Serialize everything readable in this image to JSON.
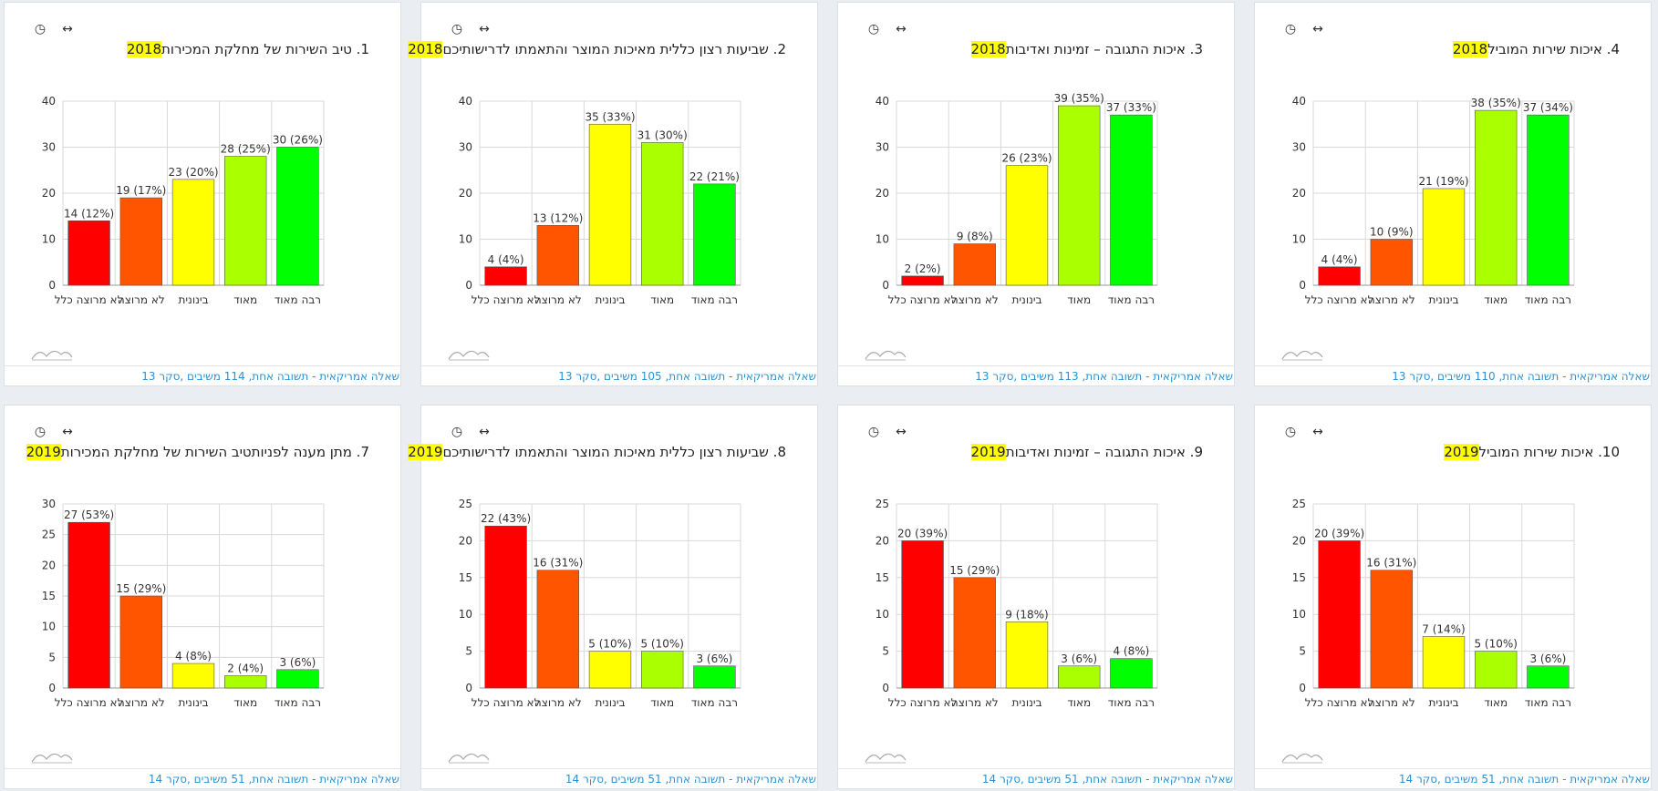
{
  "common": {
    "clock_icon": "clock-icon",
    "expand_icon": "horizontal-arrows-icon",
    "wave_icon": "wave-icon",
    "clock_glyph": "◷",
    "expand_glyph": "↔"
  },
  "bar_colors": [
    "#ff0000",
    "#ff5500",
    "#ffff00",
    "#aaff00",
    "#00ff00"
  ],
  "chart_data": [
    {
      "type": "bar",
      "title_text": "1. טיב השירות של מחלקת המכירות",
      "title_year": "2018",
      "categories": [
        "לא מרוצה כלל",
        "לא מרוצה",
        "בינונית",
        "מאוד",
        "רבה מאוד"
      ],
      "values": [
        14,
        19,
        23,
        28,
        30
      ],
      "labels": [
        "14 (12%)",
        "19 (17%)",
        "23 (20%)",
        "28 (25%)",
        "30 (26%)"
      ],
      "yticks": [
        0,
        10,
        20,
        30,
        40
      ],
      "ylim": [
        0,
        40
      ],
      "footer": "שאלה אמריקאית - תשובה אחת, 114 משיבים ,סקר 13"
    },
    {
      "type": "bar",
      "title_text": "2. שביעות רצון כללית מאיכות המוצר והתאמתו לדרישותיכם",
      "title_year": "2018",
      "categories": [
        "לא מרוצה כלל",
        "לא מרוצה",
        "בינונית",
        "מאוד",
        "רבה מאוד"
      ],
      "values": [
        4,
        13,
        35,
        31,
        22
      ],
      "labels": [
        "4 (4%)",
        "13 (12%)",
        "35 (33%)",
        "31 (30%)",
        "22 (21%)"
      ],
      "yticks": [
        0,
        10,
        20,
        30,
        40
      ],
      "ylim": [
        0,
        40
      ],
      "footer": "שאלה אמריקאית - תשובה אחת, 105 משיבים ,סקר 13"
    },
    {
      "type": "bar",
      "title_text": "3. איכות התגובה – זמינות ואדיבות",
      "title_year": "2018",
      "categories": [
        "לא מרוצה כלל",
        "לא מרוצה",
        "בינונית",
        "מאוד",
        "רבה מאוד"
      ],
      "values": [
        2,
        9,
        26,
        39,
        37
      ],
      "labels": [
        "2 (2%)",
        "9 (8%)",
        "26 (23%)",
        "39 (35%)",
        "37 (33%)"
      ],
      "yticks": [
        0,
        10,
        20,
        30,
        40
      ],
      "ylim": [
        0,
        40
      ],
      "footer": "שאלה אמריקאית - תשובה אחת, 113 משיבים ,סקר 13"
    },
    {
      "type": "bar",
      "title_text": "4. איכות שירות המוביל",
      "title_year": "2018",
      "categories": [
        "לא מרוצה כלל",
        "לא מרוצה",
        "בינונית",
        "מאוד",
        "רבה מאוד"
      ],
      "values": [
        4,
        10,
        21,
        38,
        37
      ],
      "labels": [
        "4 (4%)",
        "10 (9%)",
        "21 (19%)",
        "38 (35%)",
        "37 (34%)"
      ],
      "yticks": [
        0,
        10,
        20,
        30,
        40
      ],
      "ylim": [
        0,
        40
      ],
      "footer": "שאלה אמריקאית - תשובה אחת, 110 משיבים ,סקר 13"
    },
    {
      "type": "bar",
      "title_text": "7. מתן מענה לפניותטיב השירות של מחלקת המכירות",
      "title_year": "2019",
      "categories": [
        "לא מרוצה כלל",
        "לא מרוצה",
        "בינונית",
        "מאוד",
        "רבה מאוד"
      ],
      "values": [
        27,
        15,
        4,
        2,
        3
      ],
      "labels": [
        "27 (53%)",
        "15 (29%)",
        "4 (8%)",
        "2 (4%)",
        "3 (6%)"
      ],
      "yticks": [
        0,
        5,
        10,
        15,
        20,
        25,
        30
      ],
      "ylim": [
        0,
        30
      ],
      "footer": "שאלה אמריקאית - תשובה אחת, 51 משיבים ,סקר 14"
    },
    {
      "type": "bar",
      "title_text": "8. שביעות רצון כללית מאיכות המוצר והתאמתו לדרישותיכם",
      "title_year": "2019",
      "categories": [
        "לא מרוצה כלל",
        "לא מרוצה",
        "בינונית",
        "מאוד",
        "רבה מאוד"
      ],
      "values": [
        22,
        16,
        5,
        5,
        3
      ],
      "labels": [
        "22 (43%)",
        "16 (31%)",
        "5 (10%)",
        "5 (10%)",
        "3 (6%)"
      ],
      "yticks": [
        0,
        5,
        10,
        15,
        20,
        25
      ],
      "ylim": [
        0,
        25
      ],
      "footer": "שאלה אמריקאית - תשובה אחת, 51 משיבים ,סקר 14"
    },
    {
      "type": "bar",
      "title_text": "9. איכות התגובה – זמינות ואדיבות",
      "title_year": "2019",
      "categories": [
        "לא מרוצה כלל",
        "לא מרוצה",
        "בינונית",
        "מאוד",
        "רבה מאוד"
      ],
      "values": [
        20,
        15,
        9,
        3,
        4
      ],
      "labels": [
        "20 (39%)",
        "15 (29%)",
        "9 (18%)",
        "3 (6%)",
        "4 (8%)"
      ],
      "yticks": [
        0,
        5,
        10,
        15,
        20,
        25
      ],
      "ylim": [
        0,
        25
      ],
      "footer": "שאלה אמריקאית - תשובה אחת, 51 משיבים ,סקר 14"
    },
    {
      "type": "bar",
      "title_text": "10. איכות שירות המוביל",
      "title_year": "2019",
      "categories": [
        "לא מרוצה כלל",
        "לא מרוצה",
        "בינונית",
        "מאוד",
        "רבה מאוד"
      ],
      "values": [
        20,
        16,
        7,
        5,
        3
      ],
      "labels": [
        "20 (39%)",
        "16 (31%)",
        "7 (14%)",
        "5 (10%)",
        "3 (6%)"
      ],
      "yticks": [
        0,
        5,
        10,
        15,
        20,
        25
      ],
      "ylim": [
        0,
        25
      ],
      "footer": "שאלה אמריקאית - תשובה אחת, 51 משיבים ,סקר 14"
    }
  ]
}
